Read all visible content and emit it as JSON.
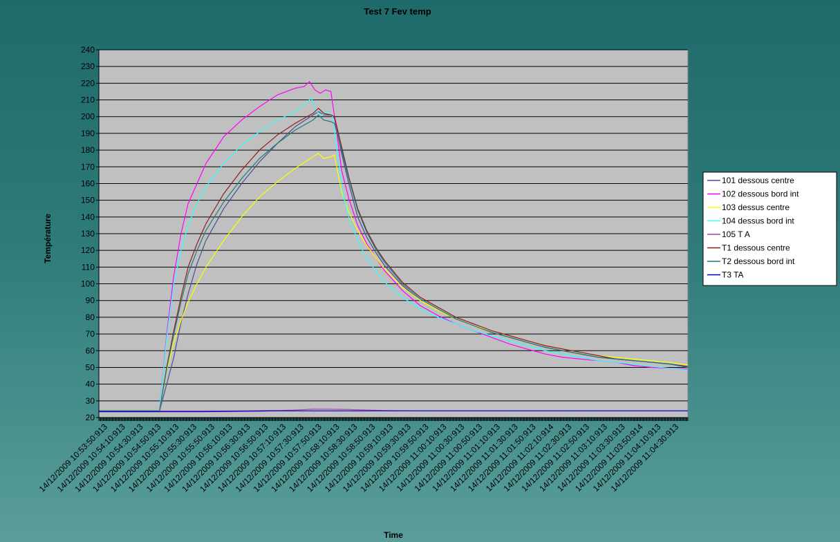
{
  "chart_data": {
    "type": "line",
    "title": "Test 7 Fev temp",
    "xlabel": "Time",
    "ylabel": "Température",
    "ylim": [
      20,
      240
    ],
    "yticks": [
      20,
      30,
      40,
      50,
      60,
      70,
      80,
      90,
      100,
      110,
      120,
      130,
      140,
      150,
      160,
      170,
      180,
      190,
      200,
      210,
      220,
      230,
      240
    ],
    "grid": "horizontal",
    "legend_position": "right",
    "plot_background": "#c0c0c0",
    "x_categories": [
      "14/12/2009 10:53:50:913",
      "14/12/2009 10:54:10:913",
      "14/12/2009 10:54:30:913",
      "14/12/2009 10:54:50:913",
      "14/12/2009 10:55:10:913",
      "14/12/2009 10:55:30:913",
      "14/12/2009 10:55:50:913",
      "14/12/2009 10:56:10:913",
      "14/12/2009 10:56:30:913",
      "14/12/2009 10:56:50:913",
      "14/12/2009 10:57:10:913",
      "14/12/2009 10:57:30:913",
      "14/12/2009 10:57:50:913",
      "14/12/2009 10:58:10:913",
      "14/12/2009 10:58:30:913",
      "14/12/2009 10:58:50:913",
      "14/12/2009 10:59:10:913",
      "14/12/2009 10:59:30:913",
      "14/12/2009 10:59:50:913",
      "14/12/2009 11:00:10:913",
      "14/12/2009 11:00:30:913",
      "14/12/2009 11:00:50:913",
      "14/12/2009 11:01:10:913",
      "14/12/2009 11:01:30:913",
      "14/12/2009 11:01:50:913",
      "14/12/2009 11:02:10:914",
      "14/12/2009 11:02:30:913",
      "14/12/2009 11:02:50:913",
      "14/12/2009 11:03:10:913",
      "14/12/2009 11:03:30:913",
      "14/12/2009 11:03:50:914",
      "14/12/2009 11:04:10:913",
      "14/12/2009 11:04:30:913"
    ],
    "series": [
      {
        "name": "101 dessous centre",
        "color": "#4b4b9a",
        "points": [
          [
            0,
            24
          ],
          [
            3,
            24
          ],
          [
            3.4,
            24
          ],
          [
            3.8,
            40
          ],
          [
            4.2,
            56
          ],
          [
            4.6,
            77
          ],
          [
            5,
            94
          ],
          [
            5.5,
            112
          ],
          [
            6,
            126
          ],
          [
            7,
            145
          ],
          [
            8,
            160
          ],
          [
            9,
            173
          ],
          [
            10,
            184
          ],
          [
            11,
            194
          ],
          [
            12,
            201
          ],
          [
            12.3,
            203
          ],
          [
            12.6,
            201
          ],
          [
            13,
            201
          ],
          [
            13.2,
            199
          ],
          [
            13.6,
            178
          ],
          [
            14,
            160
          ],
          [
            14.5,
            140
          ],
          [
            15,
            128
          ],
          [
            15.5,
            119
          ],
          [
            16,
            111
          ],
          [
            17,
            99
          ],
          [
            18,
            90
          ],
          [
            19,
            84
          ],
          [
            20,
            79
          ],
          [
            21,
            75
          ],
          [
            22,
            71
          ],
          [
            23,
            68
          ],
          [
            24,
            65
          ],
          [
            25,
            62
          ],
          [
            26,
            60
          ],
          [
            27,
            58
          ],
          [
            28,
            56
          ],
          [
            29,
            55
          ],
          [
            30,
            54
          ],
          [
            31,
            53
          ],
          [
            32,
            52
          ],
          [
            33,
            50.5
          ]
        ]
      },
      {
        "name": "102 dessous bord int",
        "color": "#ff00ff",
        "points": [
          [
            0,
            24
          ],
          [
            3,
            24
          ],
          [
            3.4,
            24
          ],
          [
            3.8,
            70
          ],
          [
            4.2,
            105
          ],
          [
            4.6,
            130
          ],
          [
            5,
            148
          ],
          [
            5.5,
            160
          ],
          [
            6,
            172
          ],
          [
            7,
            188
          ],
          [
            8,
            198
          ],
          [
            9,
            206
          ],
          [
            10,
            213
          ],
          [
            11,
            217
          ],
          [
            11.5,
            218
          ],
          [
            11.8,
            221
          ],
          [
            12.1,
            216
          ],
          [
            12.4,
            214
          ],
          [
            12.7,
            216
          ],
          [
            13,
            215
          ],
          [
            13.3,
            193
          ],
          [
            13.6,
            168
          ],
          [
            14,
            151
          ],
          [
            14.5,
            135
          ],
          [
            15,
            124
          ],
          [
            16,
            108
          ],
          [
            17,
            96
          ],
          [
            18,
            87
          ],
          [
            19,
            81
          ],
          [
            20,
            76
          ],
          [
            21,
            72
          ],
          [
            22,
            68
          ],
          [
            23,
            64
          ],
          [
            24,
            61
          ],
          [
            25,
            58
          ],
          [
            26,
            56
          ],
          [
            27,
            55
          ],
          [
            28,
            54
          ],
          [
            29,
            53
          ],
          [
            30,
            51
          ],
          [
            31,
            50
          ],
          [
            32,
            49.5
          ],
          [
            33,
            49
          ]
        ]
      },
      {
        "name": "103 dessus centre",
        "color": "#ffff00",
        "points": [
          [
            0,
            24
          ],
          [
            3,
            24
          ],
          [
            3.4,
            24
          ],
          [
            3.8,
            48
          ],
          [
            4.2,
            65
          ],
          [
            4.6,
            78
          ],
          [
            5,
            89
          ],
          [
            5.5,
            100
          ],
          [
            6,
            110
          ],
          [
            7,
            126
          ],
          [
            8,
            140
          ],
          [
            9,
            152
          ],
          [
            10,
            161
          ],
          [
            11,
            169
          ],
          [
            12,
            176
          ],
          [
            12.3,
            178
          ],
          [
            12.6,
            175
          ],
          [
            13,
            176
          ],
          [
            13.2,
            177
          ],
          [
            13.6,
            155
          ],
          [
            14,
            143
          ],
          [
            14.5,
            132
          ],
          [
            15,
            123
          ],
          [
            15.5,
            116
          ],
          [
            16,
            109
          ],
          [
            17,
            98
          ],
          [
            18,
            90
          ],
          [
            19,
            84
          ],
          [
            20,
            79
          ],
          [
            21,
            75
          ],
          [
            22,
            72
          ],
          [
            23,
            69
          ],
          [
            24,
            66
          ],
          [
            25,
            63
          ],
          [
            26,
            61
          ],
          [
            27,
            59
          ],
          [
            28,
            57
          ],
          [
            29,
            56
          ],
          [
            30,
            55
          ],
          [
            31,
            54
          ],
          [
            32,
            53
          ],
          [
            33,
            51.5
          ]
        ]
      },
      {
        "name": "104 dessus bord int",
        "color": "#33ffff",
        "points": [
          [
            0,
            24
          ],
          [
            3,
            24
          ],
          [
            3.4,
            24
          ],
          [
            3.8,
            68
          ],
          [
            4.2,
            100
          ],
          [
            4.6,
            120
          ],
          [
            5,
            135
          ],
          [
            5.5,
            148
          ],
          [
            6,
            158
          ],
          [
            7,
            172
          ],
          [
            8,
            183
          ],
          [
            9,
            191
          ],
          [
            10,
            198
          ],
          [
            11,
            203
          ],
          [
            11.5,
            207
          ],
          [
            11.9,
            211
          ],
          [
            12.2,
            203
          ],
          [
            12.5,
            201
          ],
          [
            12.8,
            203
          ],
          [
            13.1,
            200
          ],
          [
            13.4,
            175
          ],
          [
            13.7,
            153
          ],
          [
            14,
            140
          ],
          [
            14.5,
            126
          ],
          [
            15,
            115
          ],
          [
            16,
            101
          ],
          [
            17,
            92
          ],
          [
            18,
            85
          ],
          [
            19,
            80
          ],
          [
            20,
            76
          ],
          [
            21,
            72
          ],
          [
            22,
            69
          ],
          [
            23,
            66
          ],
          [
            24,
            63
          ],
          [
            25,
            60
          ],
          [
            26,
            58
          ],
          [
            27,
            56
          ],
          [
            28,
            54
          ],
          [
            29,
            53
          ],
          [
            30,
            52
          ],
          [
            31,
            50.5
          ],
          [
            32,
            49.5
          ],
          [
            33,
            48.5
          ]
        ]
      },
      {
        "name": "105 T A",
        "color": "#aa44aa",
        "points": [
          [
            0,
            24
          ],
          [
            4,
            24
          ],
          [
            6,
            24
          ],
          [
            8,
            24
          ],
          [
            10,
            24.2
          ],
          [
            11,
            24.5
          ],
          [
            12,
            25
          ],
          [
            13,
            25
          ],
          [
            14,
            24.8
          ],
          [
            15,
            24.5
          ],
          [
            16,
            24.2
          ],
          [
            18,
            24
          ],
          [
            20,
            24
          ],
          [
            24,
            24
          ],
          [
            28,
            24
          ],
          [
            33,
            24
          ]
        ]
      },
      {
        "name": "T1 dessous centre",
        "color": "#8b1c1c",
        "points": [
          [
            0,
            24
          ],
          [
            3,
            24
          ],
          [
            3.4,
            24
          ],
          [
            3.8,
            50
          ],
          [
            4.2,
            72
          ],
          [
            4.6,
            92
          ],
          [
            5,
            110
          ],
          [
            5.5,
            124
          ],
          [
            6,
            136
          ],
          [
            7,
            154
          ],
          [
            8,
            168
          ],
          [
            9,
            180
          ],
          [
            10,
            189
          ],
          [
            11,
            196
          ],
          [
            12,
            202
          ],
          [
            12.3,
            205
          ],
          [
            12.6,
            202
          ],
          [
            13,
            201
          ],
          [
            13.2,
            200
          ],
          [
            13.6,
            182
          ],
          [
            14,
            164
          ],
          [
            14.5,
            145
          ],
          [
            15,
            132
          ],
          [
            15.5,
            122
          ],
          [
            16,
            114
          ],
          [
            17,
            101
          ],
          [
            18,
            92
          ],
          [
            19,
            86
          ],
          [
            20,
            80
          ],
          [
            21,
            76
          ],
          [
            22,
            72
          ],
          [
            23,
            69
          ],
          [
            24,
            66
          ],
          [
            25,
            63
          ],
          [
            26,
            61
          ],
          [
            27,
            59
          ],
          [
            28,
            57
          ],
          [
            29,
            55
          ],
          [
            30,
            54
          ],
          [
            31,
            53
          ],
          [
            32,
            52
          ],
          [
            33,
            50.5
          ]
        ]
      },
      {
        "name": "T2 dessous bord int",
        "color": "#1f7a7a",
        "points": [
          [
            0,
            24
          ],
          [
            3,
            24
          ],
          [
            3.4,
            24
          ],
          [
            3.8,
            49
          ],
          [
            4.2,
            70
          ],
          [
            4.6,
            89
          ],
          [
            5,
            106
          ],
          [
            5.5,
            120
          ],
          [
            6,
            132
          ],
          [
            7,
            149
          ],
          [
            8,
            163
          ],
          [
            9,
            175
          ],
          [
            10,
            184
          ],
          [
            11,
            192
          ],
          [
            12,
            198
          ],
          [
            12.3,
            201
          ],
          [
            12.6,
            198
          ],
          [
            13,
            197
          ],
          [
            13.2,
            196
          ],
          [
            13.6,
            180
          ],
          [
            14,
            163
          ],
          [
            14.5,
            144
          ],
          [
            15,
            131
          ],
          [
            15.5,
            121
          ],
          [
            16,
            113
          ],
          [
            17,
            100
          ],
          [
            18,
            91
          ],
          [
            19,
            85
          ],
          [
            20,
            79
          ],
          [
            21,
            75
          ],
          [
            22,
            71
          ],
          [
            23,
            68
          ],
          [
            24,
            65
          ],
          [
            25,
            62
          ],
          [
            26,
            60
          ],
          [
            27,
            58
          ],
          [
            28,
            56
          ],
          [
            29,
            55
          ],
          [
            30,
            54
          ],
          [
            31,
            53
          ],
          [
            32,
            52
          ],
          [
            33,
            50
          ]
        ]
      },
      {
        "name": "T3 TA",
        "color": "#0000cc",
        "points": [
          [
            0,
            23.5
          ],
          [
            3,
            23.5
          ],
          [
            6,
            23.5
          ],
          [
            10,
            24
          ],
          [
            13,
            24
          ],
          [
            16,
            24
          ],
          [
            20,
            24
          ],
          [
            24,
            24
          ],
          [
            28,
            24
          ],
          [
            33,
            24
          ]
        ]
      }
    ]
  }
}
